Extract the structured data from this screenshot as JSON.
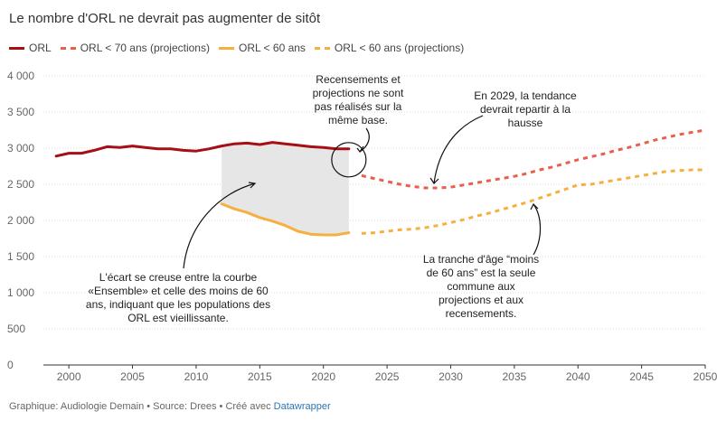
{
  "title": "Le nombre d'ORL ne devrait pas augmenter de sitôt",
  "legend": [
    {
      "label": "ORL",
      "color": "#a50f15",
      "style": "solid"
    },
    {
      "label": "ORL < 70 ans (projections)",
      "color": "#e8604c",
      "style": "dashed"
    },
    {
      "label": "ORL < 60 ans",
      "color": "#f5b041",
      "style": "solid"
    },
    {
      "label": "ORL < 60 ans (projections)",
      "color": "#f5b041",
      "style": "dashed"
    }
  ],
  "footer": {
    "text": "Graphique: Audiologie Demain • Source: Drees • Créé avec ",
    "link": "Datawrapper"
  },
  "annotations": {
    "a1": [
      "Recensements et",
      "projections ne sont",
      "pas réalisés sur la",
      "même base."
    ],
    "a2": [
      "En 2029, la tendance",
      "devrait repartir à la",
      "hausse"
    ],
    "a3": [
      "L'écart se creuse entre la courbe",
      "«Ensemble» et celle des moins de 60",
      "ans, indiquant que les populations des",
      "ORL est vieillissante."
    ],
    "a4": [
      "La tranche d'âge “moins",
      "de 60 ans” est la seule",
      "commune aux",
      "projections et aux",
      "recensements."
    ]
  },
  "chart_data": {
    "type": "line",
    "xlim": [
      1998,
      2050
    ],
    "ylim": [
      0,
      4000
    ],
    "x_ticks": [
      2000,
      2005,
      2010,
      2015,
      2020,
      2025,
      2030,
      2035,
      2040,
      2045,
      2050
    ],
    "y_ticks": [
      0,
      500,
      1000,
      1500,
      2000,
      2500,
      3000,
      3500,
      4000
    ],
    "y_tick_labels": [
      "0",
      "500",
      "1 000",
      "1 500",
      "2 000",
      "2 500",
      "3 000",
      "3 500",
      "4 000"
    ],
    "grid": true,
    "legend_position": "top-left",
    "shaded_gap": {
      "x": [
        2012,
        2022
      ],
      "color": "#e6e6e6"
    },
    "series": [
      {
        "name": "ORL",
        "color": "#a50f15",
        "style": "solid",
        "x": [
          1999,
          2000,
          2001,
          2002,
          2003,
          2004,
          2005,
          2006,
          2007,
          2008,
          2009,
          2010,
          2011,
          2012,
          2013,
          2014,
          2015,
          2016,
          2017,
          2018,
          2019,
          2020,
          2021,
          2022
        ],
        "y": [
          2890,
          2930,
          2930,
          2970,
          3020,
          3010,
          3030,
          3010,
          2990,
          2990,
          2970,
          2960,
          2990,
          3030,
          3060,
          3070,
          3050,
          3080,
          3060,
          3040,
          3020,
          3010,
          2990,
          2990
        ]
      },
      {
        "name": "ORL < 70 ans (projections)",
        "color": "#e8604c",
        "style": "dashed",
        "x": [
          2023,
          2024,
          2025,
          2026,
          2027,
          2028,
          2029,
          2030,
          2031,
          2032,
          2033,
          2034,
          2035,
          2036,
          2037,
          2038,
          2039,
          2040,
          2041,
          2042,
          2043,
          2044,
          2045,
          2046,
          2047,
          2048,
          2049,
          2050
        ],
        "y": [
          2620,
          2580,
          2540,
          2500,
          2470,
          2450,
          2450,
          2460,
          2490,
          2520,
          2550,
          2580,
          2610,
          2650,
          2700,
          2740,
          2790,
          2840,
          2880,
          2920,
          2970,
          3010,
          3060,
          3110,
          3150,
          3190,
          3220,
          3250
        ]
      },
      {
        "name": "ORL < 60 ans",
        "color": "#f5b041",
        "style": "solid",
        "x": [
          2012,
          2013,
          2014,
          2015,
          2016,
          2017,
          2018,
          2019,
          2020,
          2021,
          2022
        ],
        "y": [
          2230,
          2160,
          2110,
          2040,
          1990,
          1930,
          1850,
          1810,
          1800,
          1800,
          1830
        ]
      },
      {
        "name": "ORL < 60 ans (projections)",
        "color": "#f5b041",
        "style": "dashed",
        "x": [
          2023,
          2024,
          2025,
          2026,
          2027,
          2028,
          2029,
          2030,
          2031,
          2032,
          2033,
          2034,
          2035,
          2036,
          2037,
          2038,
          2039,
          2040,
          2041,
          2042,
          2043,
          2044,
          2045,
          2046,
          2047,
          2048,
          2049,
          2050
        ],
        "y": [
          1820,
          1830,
          1850,
          1870,
          1880,
          1900,
          1930,
          1970,
          2010,
          2060,
          2100,
          2150,
          2200,
          2250,
          2310,
          2370,
          2430,
          2490,
          2500,
          2530,
          2560,
          2590,
          2620,
          2650,
          2680,
          2690,
          2700,
          2700
        ]
      }
    ]
  }
}
